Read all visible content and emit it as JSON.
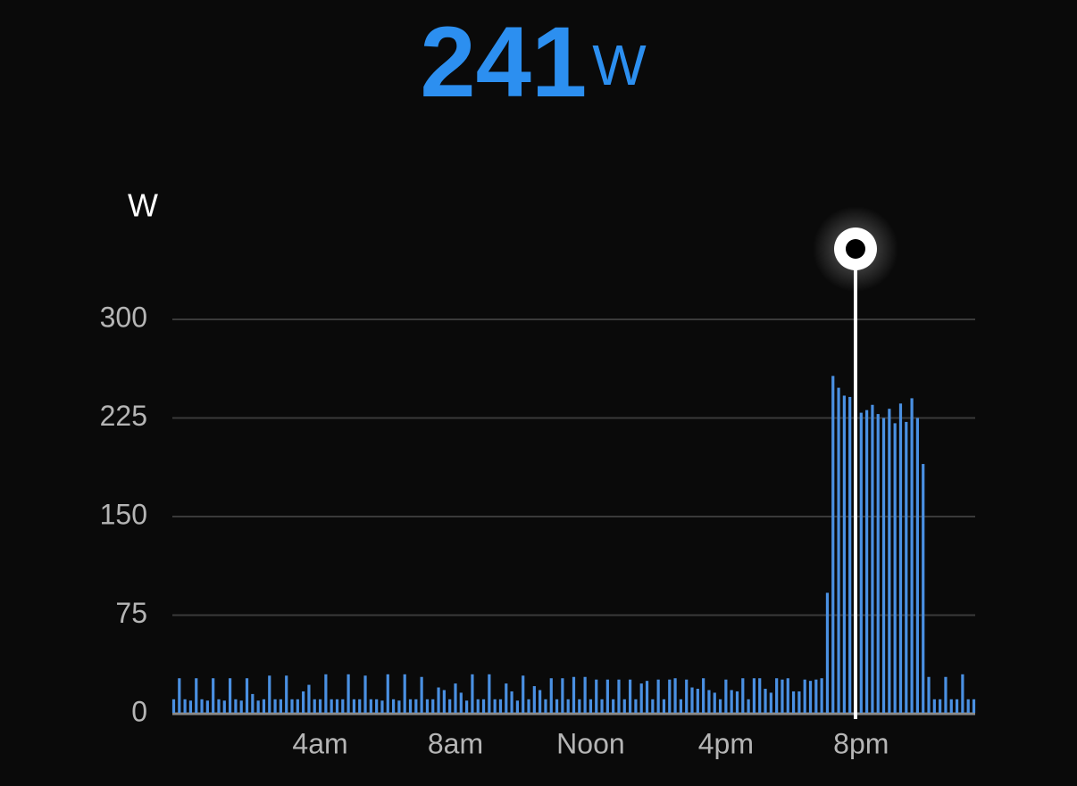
{
  "readout": {
    "value": 241,
    "unit": "W"
  },
  "chart_data": {
    "type": "bar",
    "y_label": "W",
    "categories": [
      null,
      null,
      null,
      null,
      null,
      null,
      null,
      null,
      null,
      null,
      null,
      null,
      null,
      null,
      null,
      null,
      null,
      null,
      null,
      null,
      null,
      null,
      null,
      null,
      null,
      null,
      "4am",
      null,
      null,
      null,
      null,
      null,
      null,
      null,
      null,
      null,
      null,
      null,
      null,
      null,
      null,
      null,
      null,
      null,
      null,
      null,
      null,
      null,
      null,
      null,
      "8am",
      null,
      null,
      null,
      null,
      null,
      null,
      null,
      null,
      null,
      null,
      null,
      null,
      null,
      null,
      null,
      null,
      null,
      null,
      null,
      null,
      null,
      null,
      null,
      "Noon",
      null,
      null,
      null,
      null,
      null,
      null,
      null,
      null,
      null,
      null,
      null,
      null,
      null,
      null,
      null,
      null,
      null,
      null,
      null,
      null,
      null,
      null,
      null,
      "4pm",
      null,
      null,
      null,
      null,
      null,
      null,
      null,
      null,
      null,
      null,
      null,
      null,
      null,
      null,
      null,
      null,
      null,
      null,
      null,
      null,
      null,
      null,
      null,
      "8pm",
      null,
      null,
      null,
      null,
      null,
      null,
      null,
      null,
      null,
      null,
      null,
      null,
      null,
      null,
      null,
      null,
      null,
      null,
      null,
      null
    ],
    "values": [
      11,
      27,
      11,
      10,
      27,
      11,
      10,
      27,
      11,
      10,
      27,
      11,
      10,
      27,
      15,
      10,
      11,
      29,
      11,
      11,
      29,
      11,
      11,
      17,
      22,
      11,
      11,
      30,
      11,
      11,
      11,
      30,
      11,
      11,
      29,
      11,
      11,
      10,
      30,
      11,
      10,
      30,
      11,
      11,
      28,
      11,
      11,
      20,
      18,
      11,
      23,
      16,
      10,
      30,
      11,
      11,
      30,
      11,
      11,
      23,
      17,
      10,
      29,
      11,
      21,
      18,
      11,
      27,
      11,
      27,
      11,
      28,
      11,
      28,
      11,
      26,
      11,
      26,
      11,
      26,
      11,
      26,
      11,
      23,
      25,
      11,
      26,
      11,
      26,
      27,
      11,
      26,
      20,
      19,
      27,
      18,
      16,
      11,
      26,
      18,
      17,
      27,
      11,
      27,
      27,
      19,
      16,
      27,
      26,
      27,
      17,
      17,
      26,
      25,
      26,
      27,
      92,
      257,
      248,
      242,
      241,
      241,
      229,
      231,
      235,
      228,
      225,
      232,
      221,
      236,
      222,
      240,
      225,
      190,
      28,
      11,
      11,
      28,
      11,
      11,
      30,
      11,
      11
    ],
    "color": "#4a90e2",
    "selected": 121,
    "ylim": [
      0,
      300
    ],
    "yticks": [
      0,
      75,
      150,
      225,
      300
    ],
    "grid": true
  }
}
